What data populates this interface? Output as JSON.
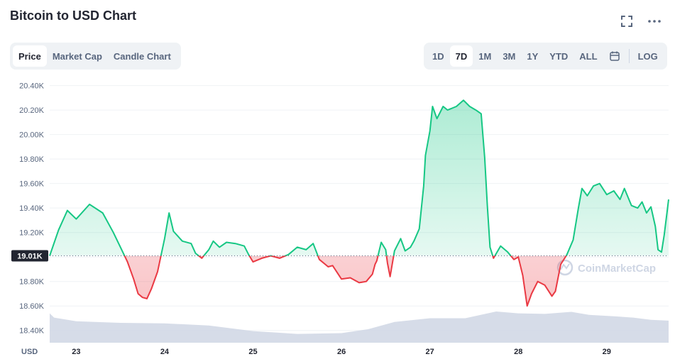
{
  "header": {
    "title": "Bitcoin to USD Chart",
    "fullscreen_icon": "fullscreen-icon",
    "more_icon": "more-dots-icon"
  },
  "chart_tabs": [
    {
      "label": "Price",
      "active": true
    },
    {
      "label": "Market Cap",
      "active": false
    },
    {
      "label": "Candle Chart",
      "active": false
    }
  ],
  "range_tabs": [
    {
      "label": "1D",
      "active": false
    },
    {
      "label": "7D",
      "active": true
    },
    {
      "label": "1M",
      "active": false
    },
    {
      "label": "3M",
      "active": false
    },
    {
      "label": "1Y",
      "active": false
    },
    {
      "label": "YTD",
      "active": false
    },
    {
      "label": "ALL",
      "active": false
    }
  ],
  "calendar_icon": "calendar-icon",
  "log_label": "LOG",
  "colors": {
    "up": "#16c784",
    "down": "#ea3943",
    "volume": "#cfd6e4",
    "baseline": "#58667e"
  },
  "chart_data": {
    "type": "line",
    "xlabel": "USD",
    "ylabel": "",
    "ylim": [
      18300,
      20450
    ],
    "xlim": [
      22.7,
      29.7
    ],
    "yticks": [
      "18.40K",
      "18.60K",
      "18.80K",
      "19.00K",
      "19.20K",
      "19.40K",
      "19.60K",
      "19.80K",
      "20.00K",
      "20.20K",
      "20.40K"
    ],
    "yticks_values": [
      18400,
      18600,
      18800,
      19000,
      19200,
      19400,
      19600,
      19800,
      20000,
      20200,
      20400
    ],
    "xticks": [
      "23",
      "24",
      "25",
      "26",
      "27",
      "28",
      "29"
    ],
    "xticks_values": [
      23,
      24,
      25,
      26,
      27,
      28,
      29
    ],
    "baseline_label": "19.01K",
    "baseline_value": 19010,
    "watermark": "CoinMarketCap",
    "grid": true,
    "series": [
      {
        "values": [
          [
            22.7,
            19010
          ],
          [
            22.8,
            19220
          ],
          [
            22.9,
            19380
          ],
          [
            23.0,
            19310
          ],
          [
            23.15,
            19430
          ],
          [
            23.3,
            19360
          ],
          [
            23.42,
            19200
          ],
          [
            23.5,
            19080
          ],
          [
            23.58,
            18960
          ],
          [
            23.65,
            18820
          ],
          [
            23.7,
            18700
          ],
          [
            23.75,
            18670
          ],
          [
            23.8,
            18660
          ],
          [
            23.85,
            18740
          ],
          [
            23.92,
            18880
          ],
          [
            24.0,
            19150
          ],
          [
            24.05,
            19360
          ],
          [
            24.1,
            19210
          ],
          [
            24.2,
            19130
          ],
          [
            24.3,
            19110
          ],
          [
            24.35,
            19030
          ],
          [
            24.42,
            18990
          ],
          [
            24.5,
            19060
          ],
          [
            24.55,
            19130
          ],
          [
            24.62,
            19080
          ],
          [
            24.7,
            19120
          ],
          [
            24.8,
            19110
          ],
          [
            24.9,
            19090
          ],
          [
            24.95,
            19020
          ],
          [
            25.0,
            18960
          ],
          [
            25.1,
            18990
          ],
          [
            25.2,
            19010
          ],
          [
            25.3,
            18990
          ],
          [
            25.4,
            19020
          ],
          [
            25.5,
            19080
          ],
          [
            25.6,
            19060
          ],
          [
            25.68,
            19110
          ],
          [
            25.75,
            18980
          ],
          [
            25.85,
            18920
          ],
          [
            25.9,
            18930
          ],
          [
            26.0,
            18820
          ],
          [
            26.1,
            18830
          ],
          [
            26.2,
            18790
          ],
          [
            26.28,
            18800
          ],
          [
            26.35,
            18860
          ],
          [
            26.38,
            18940
          ],
          [
            26.4,
            18970
          ],
          [
            26.45,
            19120
          ],
          [
            26.5,
            19060
          ],
          [
            26.52,
            18950
          ],
          [
            26.55,
            18840
          ],
          [
            26.6,
            19050
          ],
          [
            26.67,
            19150
          ],
          [
            26.72,
            19050
          ],
          [
            26.78,
            19080
          ],
          [
            26.82,
            19130
          ],
          [
            26.88,
            19230
          ],
          [
            26.93,
            19580
          ],
          [
            26.95,
            19830
          ],
          [
            27.0,
            20030
          ],
          [
            27.03,
            20230
          ],
          [
            27.08,
            20130
          ],
          [
            27.15,
            20230
          ],
          [
            27.2,
            20200
          ],
          [
            27.3,
            20230
          ],
          [
            27.38,
            20280
          ],
          [
            27.45,
            20230
          ],
          [
            27.52,
            20200
          ],
          [
            27.58,
            20170
          ],
          [
            27.62,
            19810
          ],
          [
            27.65,
            19420
          ],
          [
            27.68,
            19080
          ],
          [
            27.72,
            18990
          ],
          [
            27.8,
            19090
          ],
          [
            27.88,
            19040
          ],
          [
            27.95,
            18980
          ],
          [
            28.0,
            19000
          ],
          [
            28.05,
            18850
          ],
          [
            28.1,
            18600
          ],
          [
            28.15,
            18700
          ],
          [
            28.22,
            18800
          ],
          [
            28.3,
            18770
          ],
          [
            28.38,
            18680
          ],
          [
            28.42,
            18720
          ],
          [
            28.48,
            18940
          ],
          [
            28.55,
            19020
          ],
          [
            28.62,
            19140
          ],
          [
            28.68,
            19400
          ],
          [
            28.72,
            19560
          ],
          [
            28.78,
            19500
          ],
          [
            28.85,
            19580
          ],
          [
            28.92,
            19600
          ],
          [
            29.0,
            19510
          ],
          [
            29.08,
            19540
          ],
          [
            29.15,
            19470
          ],
          [
            29.2,
            19560
          ],
          [
            29.28,
            19420
          ],
          [
            29.35,
            19400
          ],
          [
            29.4,
            19450
          ],
          [
            29.45,
            19360
          ],
          [
            29.5,
            19410
          ],
          [
            29.55,
            19250
          ],
          [
            29.58,
            19060
          ],
          [
            29.62,
            19040
          ],
          [
            29.65,
            19180
          ],
          [
            29.7,
            19470
          ]
        ]
      }
    ],
    "volume": [
      [
        22.7,
        18540
      ],
      [
        22.75,
        18505
      ],
      [
        23.0,
        18475
      ],
      [
        23.5,
        18462
      ],
      [
        24.0,
        18458
      ],
      [
        24.5,
        18440
      ],
      [
        25.0,
        18395
      ],
      [
        25.5,
        18372
      ],
      [
        26.0,
        18378
      ],
      [
        26.3,
        18410
      ],
      [
        26.6,
        18470
      ],
      [
        27.0,
        18500
      ],
      [
        27.4,
        18500
      ],
      [
        27.75,
        18555
      ],
      [
        28.0,
        18540
      ],
      [
        28.3,
        18535
      ],
      [
        28.6,
        18552
      ],
      [
        28.8,
        18528
      ],
      [
        29.1,
        18515
      ],
      [
        29.3,
        18505
      ],
      [
        29.5,
        18487
      ],
      [
        29.7,
        18480
      ]
    ]
  }
}
